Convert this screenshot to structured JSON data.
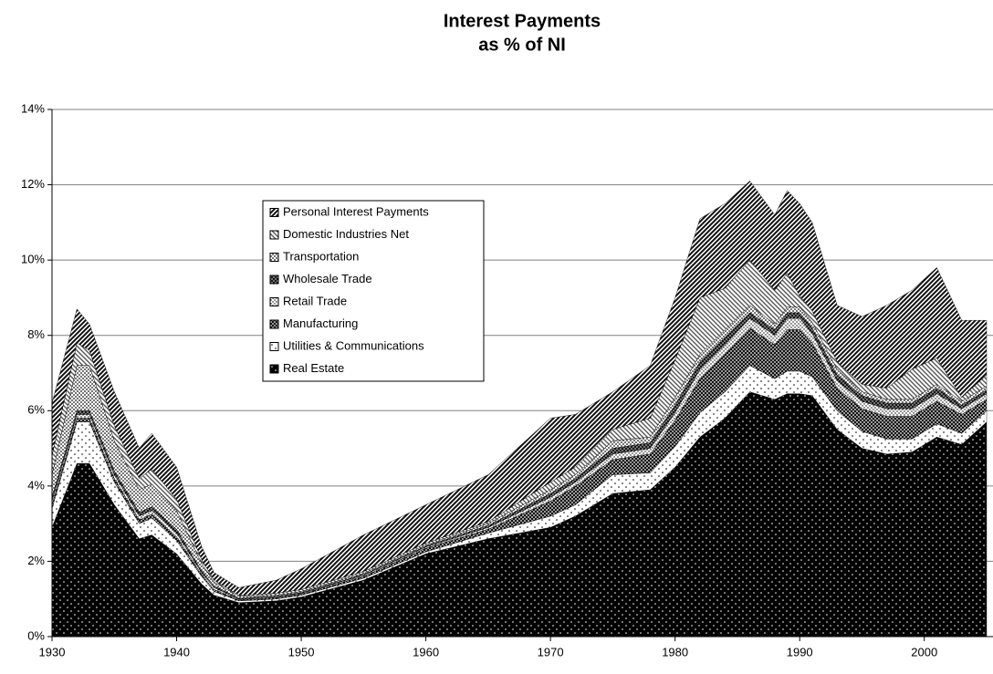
{
  "chart_data": {
    "type": "stacked-area",
    "title": "Interest Payments",
    "subtitle": "as % of NI",
    "x": [
      1930,
      1932,
      1933,
      1935,
      1937,
      1938,
      1940,
      1942,
      1943,
      1945,
      1948,
      1950,
      1955,
      1960,
      1965,
      1970,
      1972,
      1975,
      1978,
      1980,
      1982,
      1984,
      1986,
      1988,
      1989,
      1990,
      1991,
      1993,
      1995,
      1997,
      1999,
      2001,
      2003,
      2005
    ],
    "xlim": [
      1930,
      2005
    ],
    "xticks": [
      1930,
      1940,
      1950,
      1960,
      1970,
      1980,
      1990,
      2000
    ],
    "ylim": [
      0,
      14
    ],
    "yticks": [
      {
        "value": 0,
        "label": "0%"
      },
      {
        "value": 2,
        "label": "2%"
      },
      {
        "value": 4,
        "label": "4%"
      },
      {
        "value": 6,
        "label": "6%"
      },
      {
        "value": 8,
        "label": "8%"
      },
      {
        "value": 10,
        "label": "10%"
      },
      {
        "value": 12,
        "label": "12%"
      },
      {
        "value": 14,
        "label": "14%"
      }
    ],
    "grid": true,
    "legend": "upper-left",
    "series": [
      {
        "name": "Real Estate",
        "color": "#000000",
        "pattern": "dots-on-black",
        "values": [
          2.9,
          4.6,
          4.6,
          3.5,
          2.6,
          2.7,
          2.2,
          1.4,
          1.1,
          0.9,
          0.95,
          1.05,
          1.5,
          2.2,
          2.6,
          2.9,
          3.2,
          3.8,
          3.9,
          4.5,
          5.3,
          5.8,
          6.5,
          6.3,
          6.45,
          6.45,
          6.4,
          5.5,
          5.0,
          4.85,
          4.9,
          5.3,
          5.1,
          5.7
        ]
      },
      {
        "name": "Utilities & Communications",
        "color": "#ffffff",
        "pattern": "dots-on-white",
        "values": [
          0.5,
          1.1,
          1.1,
          0.6,
          0.4,
          0.45,
          0.35,
          0.2,
          0.1,
          0.05,
          0.05,
          0.05,
          0.05,
          0.05,
          0.15,
          0.3,
          0.3,
          0.5,
          0.45,
          0.55,
          0.65,
          0.7,
          0.7,
          0.55,
          0.6,
          0.6,
          0.5,
          0.5,
          0.45,
          0.4,
          0.35,
          0.35,
          0.3,
          0.3
        ]
      },
      {
        "name": "Manufacturing",
        "color": "#333333",
        "pattern": "checker-dark",
        "values": [
          0.1,
          0.1,
          0.1,
          0.1,
          0.1,
          0.1,
          0.1,
          0.05,
          0.05,
          0.03,
          0.03,
          0.03,
          0.05,
          0.1,
          0.1,
          0.4,
          0.5,
          0.4,
          0.5,
          0.7,
          0.9,
          1.0,
          1.0,
          0.9,
          1.1,
          1.1,
          0.9,
          0.6,
          0.6,
          0.6,
          0.6,
          0.6,
          0.5,
          0.3
        ]
      },
      {
        "name": "Retail Trade",
        "color": "#dddddd",
        "pattern": "dots-dense",
        "values": [
          0.1,
          0.1,
          0.1,
          0.1,
          0.1,
          0.1,
          0.1,
          0.05,
          0.05,
          0.02,
          0.02,
          0.02,
          0.03,
          0.03,
          0.05,
          0.1,
          0.1,
          0.15,
          0.15,
          0.2,
          0.25,
          0.25,
          0.25,
          0.25,
          0.3,
          0.3,
          0.25,
          0.2,
          0.2,
          0.2,
          0.2,
          0.2,
          0.15,
          0.15
        ]
      },
      {
        "name": "Wholesale Trade",
        "color": "#222222",
        "pattern": "crosshatch",
        "values": [
          0.1,
          0.1,
          0.1,
          0.1,
          0.1,
          0.1,
          0.1,
          0.05,
          0.05,
          0.02,
          0.02,
          0.02,
          0.02,
          0.02,
          0.05,
          0.1,
          0.1,
          0.15,
          0.15,
          0.2,
          0.2,
          0.2,
          0.15,
          0.15,
          0.15,
          0.15,
          0.15,
          0.15,
          0.15,
          0.15,
          0.15,
          0.15,
          0.1,
          0.1
        ]
      },
      {
        "name": "Transportation",
        "color": "#bbbbbb",
        "pattern": "checker-light",
        "values": [
          0.6,
          1.2,
          1.2,
          0.8,
          0.6,
          0.6,
          0.5,
          0.2,
          0.1,
          0.05,
          0.03,
          0.03,
          0.03,
          0.03,
          0.05,
          0.1,
          0.1,
          0.2,
          0.15,
          0.2,
          0.2,
          0.2,
          0.2,
          0.15,
          0.15,
          0.15,
          0.15,
          0.15,
          0.1,
          0.1,
          0.1,
          0.1,
          0.1,
          0.1
        ]
      },
      {
        "name": "Domestic Industries Net",
        "color": "#aaaaaa",
        "pattern": "diag-back",
        "values": [
          0.5,
          0.6,
          0.4,
          0.4,
          0.3,
          0.4,
          0.3,
          0.1,
          0.05,
          0.03,
          0.05,
          0.05,
          0.05,
          0.05,
          0.05,
          0.2,
          0.2,
          0.3,
          0.5,
          1.0,
          1.5,
          1.1,
          1.2,
          0.9,
          0.9,
          0.3,
          0.3,
          0.2,
          0.2,
          0.3,
          0.8,
          0.7,
          0.1,
          0.3
        ]
      },
      {
        "name": "Personal Interest Payments",
        "color": "#555555",
        "pattern": "diag-forward",
        "values": [
          1.4,
          0.9,
          0.7,
          0.9,
          0.8,
          0.95,
          0.85,
          0.35,
          0.2,
          0.2,
          0.35,
          0.55,
          0.97,
          1.02,
          1.25,
          1.7,
          1.4,
          1.0,
          1.4,
          1.65,
          2.1,
          2.25,
          2.1,
          2.0,
          2.2,
          2.45,
          2.35,
          1.5,
          1.8,
          2.2,
          2.1,
          2.4,
          2.05,
          1.45
        ]
      }
    ]
  }
}
